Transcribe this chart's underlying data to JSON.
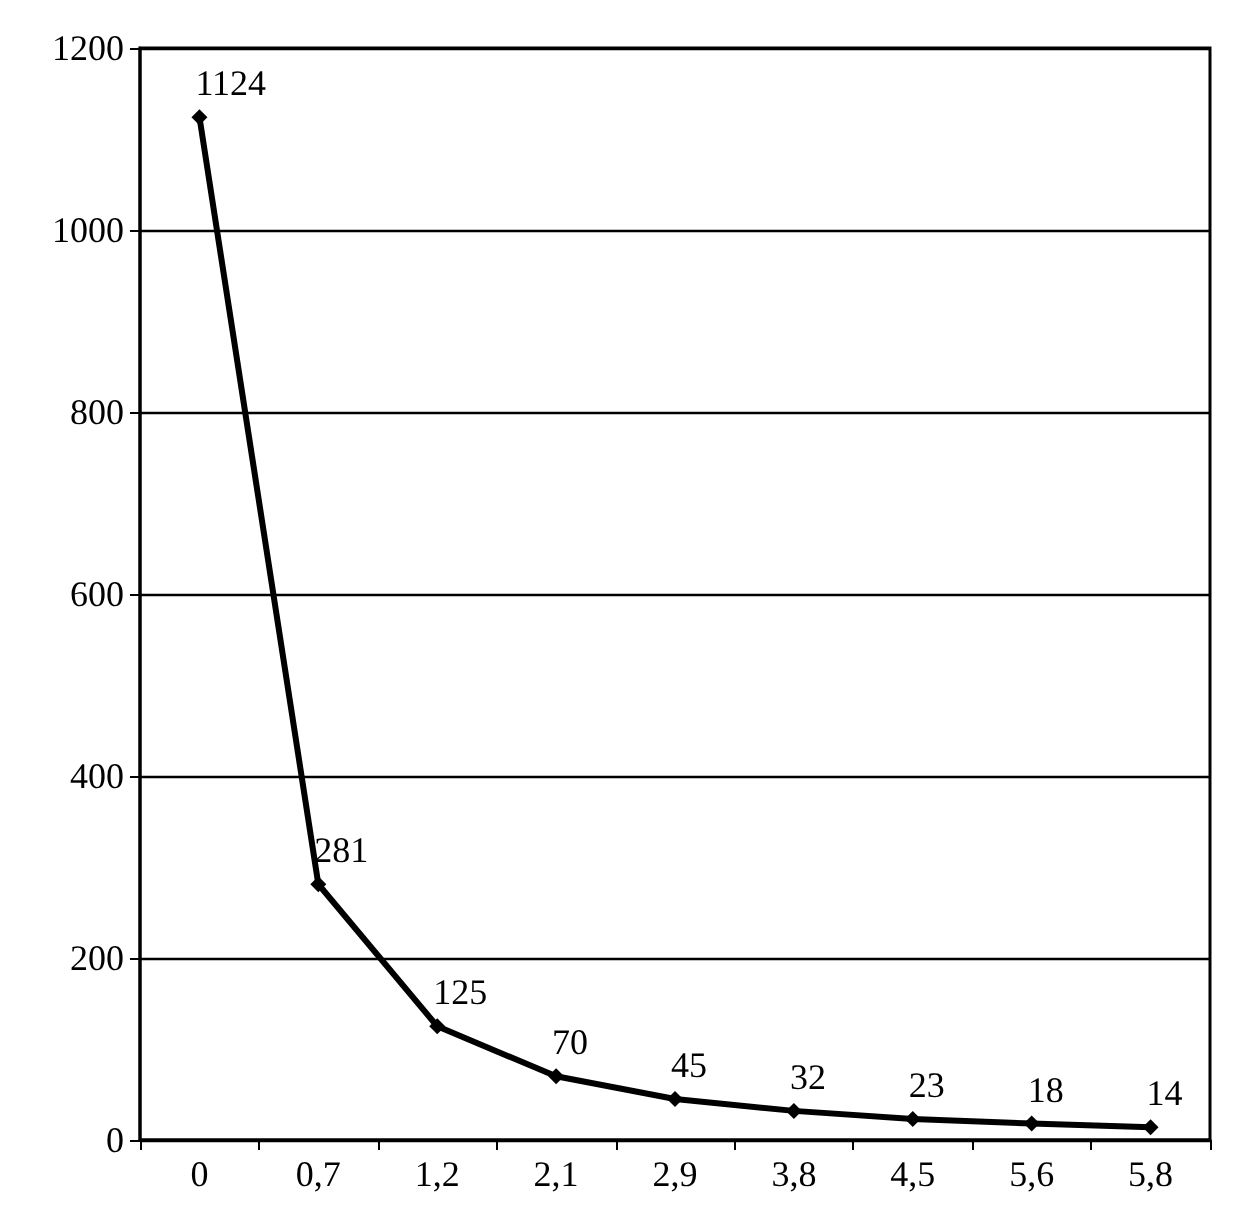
{
  "chart_data": {
    "type": "line",
    "categories": [
      "0",
      "0,7",
      "1,2",
      "2,1",
      "2,9",
      "3,8",
      "4,5",
      "5,6",
      "5,8"
    ],
    "series": [
      {
        "color": "#000000",
        "values": [
          1124,
          281,
          125,
          70,
          45,
          32,
          23,
          18,
          14
        ]
      }
    ],
    "ylim": [
      0,
      1200
    ],
    "yticks": [
      0,
      200,
      400,
      600,
      800,
      1000,
      1200
    ],
    "grid": "y",
    "marker": "diamond",
    "line_style": "solid",
    "data_labels": true
  }
}
